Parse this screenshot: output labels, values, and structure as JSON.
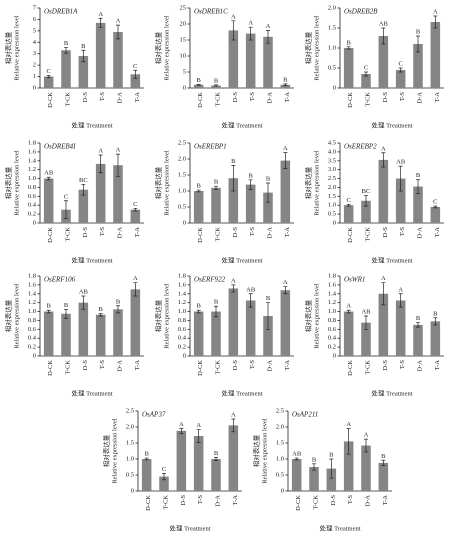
{
  "chart_data": [
    {
      "type": "bar",
      "title": "OsDREB1A",
      "ylabel": [
        "相对表达量",
        "Relative expression level"
      ],
      "xlabel": "处理 Treatment",
      "categories": [
        "D-CK",
        "T-CK",
        "D-S",
        "T-S",
        "D-A",
        "T-A"
      ],
      "values": [
        1.0,
        3.3,
        2.8,
        5.7,
        4.9,
        1.2
      ],
      "errors": [
        0.1,
        0.25,
        0.5,
        0.4,
        0.6,
        0.35
      ],
      "letters": [
        "C",
        "B",
        "B",
        "A",
        "A",
        "C"
      ],
      "color": "#858585",
      "ylim": [
        0,
        7
      ],
      "yticks": [
        0,
        1,
        2,
        3,
        4,
        5,
        6,
        7
      ]
    },
    {
      "type": "bar",
      "title": "OsDREB1C",
      "ylabel": [
        "相对表达量",
        "Relative expression level"
      ],
      "xlabel": "处理 Treatment",
      "categories": [
        "D-CK",
        "T-CK",
        "D-S",
        "T-S",
        "D-A",
        "T-A"
      ],
      "values": [
        1.0,
        0.8,
        18,
        17,
        16,
        1.0
      ],
      "errors": [
        0.1,
        0.2,
        3,
        2,
        2,
        0.3
      ],
      "letters": [
        "B",
        "B",
        "A",
        "A",
        "A",
        "B"
      ],
      "color": "#858585",
      "ylim": [
        0,
        25
      ],
      "yticks": [
        0,
        5,
        10,
        15,
        20,
        25
      ]
    },
    {
      "type": "bar",
      "title": "OsDREB2B",
      "ylabel": [
        "相对表达量",
        "Relative expression level"
      ],
      "xlabel": "处理 Treatment",
      "categories": [
        "D-CK",
        "T-CK",
        "D-S",
        "T-S",
        "D-A",
        "T-A"
      ],
      "values": [
        1.0,
        0.35,
        1.3,
        0.45,
        1.1,
        1.65
      ],
      "errors": [
        0.03,
        0.05,
        0.2,
        0.05,
        0.2,
        0.15
      ],
      "letters": [
        "B",
        "C",
        "AB",
        "C",
        "B",
        "A"
      ],
      "color": "#858585",
      "ylim": [
        0,
        2
      ],
      "yticks": [
        0,
        0.5,
        {
          "value": 1,
          "label": "1.0"
        },
        1.5,
        {
          "value": 2,
          "label": "2.0"
        }
      ]
    },
    {
      "type": "bar",
      "title": "OsDREB4I",
      "ylabel": [
        "相对表达量",
        "Relative expression level"
      ],
      "xlabel": "处理 Treatment",
      "categories": [
        "D-CK",
        "T-CK",
        "D-S",
        "T-S",
        "D-A",
        "T-A"
      ],
      "values": [
        1.0,
        0.3,
        0.75,
        1.33,
        1.3,
        0.3
      ],
      "errors": [
        0.03,
        0.2,
        0.12,
        0.2,
        0.25,
        0.03
      ],
      "letters": [
        "AB",
        "C",
        "BC",
        "A",
        "A",
        "C"
      ],
      "color": "#858585",
      "ylim": [
        0,
        1.8
      ],
      "yticks": [
        0,
        0.2,
        0.4,
        0.6,
        0.8,
        {
          "value": 1,
          "label": "1.0"
        },
        1.2,
        1.4,
        1.6,
        1.8
      ]
    },
    {
      "type": "bar",
      "title": "OsEREBP1",
      "ylabel": [
        "相对表达量",
        "Relative expression level"
      ],
      "xlabel": "处理 Treatment",
      "categories": [
        "D-CK",
        "T-CK",
        "D-S",
        "T-S",
        "D-A",
        "T-A"
      ],
      "values": [
        1.0,
        1.1,
        1.4,
        1.2,
        0.95,
        1.95
      ],
      "errors": [
        0.03,
        0.05,
        0.4,
        0.15,
        0.3,
        0.25
      ],
      "letters": [
        "B",
        "B",
        "B",
        "B",
        "B",
        "A"
      ],
      "color": "#858585",
      "ylim": [
        0,
        2.5
      ],
      "yticks": [
        0,
        0.5,
        {
          "value": 1,
          "label": "1.0"
        },
        1.5,
        {
          "value": 2,
          "label": "2.0"
        },
        2.5
      ]
    },
    {
      "type": "bar",
      "title": "OsEREBP2",
      "ylabel": [
        "相对表达量",
        "Relative expression level"
      ],
      "xlabel": "处理 Treatment",
      "categories": [
        "D-CK",
        "T-CK",
        "D-S",
        "T-S",
        "D-A",
        "T-A"
      ],
      "values": [
        1.0,
        1.25,
        3.55,
        2.5,
        2.05,
        0.9
      ],
      "errors": [
        0.05,
        0.3,
        0.4,
        0.7,
        0.4,
        0.05
      ],
      "letters": [
        "C",
        "BC",
        "A",
        "AB",
        "B",
        "C"
      ],
      "color": "#858585",
      "ylim": [
        0,
        4.5
      ],
      "yticks": [
        0,
        0.5,
        {
          "value": 1,
          "label": "1.0"
        },
        1.5,
        {
          "value": 2,
          "label": "2.0"
        },
        2.5,
        {
          "value": 3,
          "label": "3.0"
        },
        3.5,
        {
          "value": 4,
          "label": "4.0"
        },
        4.5
      ]
    },
    {
      "type": "bar",
      "title": "OsERF106",
      "ylabel": [
        "相对表达量",
        "Relative expression level"
      ],
      "xlabel": "处理 Treatment",
      "categories": [
        "D-CK",
        "T-CK",
        "D-S",
        "T-S",
        "D-A",
        "T-A"
      ],
      "values": [
        1.0,
        0.95,
        1.2,
        0.93,
        1.05,
        1.5
      ],
      "errors": [
        0.03,
        0.1,
        0.15,
        0.03,
        0.08,
        0.15
      ],
      "letters": [
        "B",
        "B",
        "AB",
        "B",
        "B",
        "A"
      ],
      "color": "#858585",
      "ylim": [
        0,
        1.8
      ],
      "yticks": [
        0,
        0.2,
        0.4,
        0.6,
        0.8,
        {
          "value": 1,
          "label": "1.0"
        },
        1.2,
        1.4,
        1.6,
        1.8
      ]
    },
    {
      "type": "bar",
      "title": "OsERF922",
      "ylabel": [
        "相对表达量",
        "Relative expression level"
      ],
      "xlabel": "处理 Treatment",
      "categories": [
        "D-CK",
        "T-CK",
        "D-S",
        "T-S",
        "D-A",
        "T-A"
      ],
      "values": [
        1.0,
        1.0,
        1.52,
        1.25,
        0.9,
        1.48
      ],
      "errors": [
        0.03,
        0.12,
        0.08,
        0.15,
        0.3,
        0.08
      ],
      "letters": [
        "B",
        "B",
        "A",
        "AB",
        "B",
        "A"
      ],
      "color": "#858585",
      "ylim": [
        0,
        1.8
      ],
      "yticks": [
        0,
        0.2,
        0.4,
        0.6,
        0.8,
        {
          "value": 1,
          "label": "1.0"
        },
        1.2,
        1.4,
        1.6,
        1.8
      ]
    },
    {
      "type": "bar",
      "title": "OsWR1",
      "ylabel": [
        "相对表达量",
        "Relative expression level"
      ],
      "xlabel": "处理 Treatment",
      "categories": [
        "D-CK",
        "T-CK",
        "D-S",
        "T-S",
        "D-A",
        "T-A"
      ],
      "values": [
        1.0,
        0.75,
        1.4,
        1.25,
        0.7,
        0.78
      ],
      "errors": [
        0.03,
        0.15,
        0.25,
        0.15,
        0.05,
        0.08
      ],
      "letters": [
        "A",
        "AB",
        "A",
        "A",
        "B",
        "B"
      ],
      "color": "#858585",
      "ylim": [
        0,
        1.8
      ],
      "yticks": [
        0,
        0.2,
        0.4,
        0.6,
        0.8,
        {
          "value": 1,
          "label": "1.0"
        },
        1.2,
        1.4,
        1.6,
        1.8
      ]
    },
    {
      "type": "bar",
      "title": "OsAP37",
      "ylabel": [
        "相对表达量",
        "Relative expression level"
      ],
      "xlabel": "处理 Treatment",
      "categories": [
        "D-CK",
        "T-CK",
        "D-S",
        "T-S",
        "D-A",
        "T-A"
      ],
      "values": [
        1.0,
        0.45,
        1.88,
        1.72,
        1.0,
        2.05
      ],
      "errors": [
        0.03,
        0.1,
        0.08,
        0.2,
        0.05,
        0.2
      ],
      "letters": [
        "B",
        "C",
        "A",
        "A",
        "B",
        "A"
      ],
      "color": "#858585",
      "ylim": [
        0,
        2.5
      ],
      "yticks": [
        0,
        0.5,
        {
          "value": 1,
          "label": "1.0"
        },
        1.5,
        {
          "value": 2,
          "label": "2.0"
        },
        2.5
      ]
    },
    {
      "type": "bar",
      "title": "OsAP211",
      "ylabel": [
        "相对表达量",
        "Relative expression level"
      ],
      "xlabel": "处理 Treatment",
      "categories": [
        "D-CK",
        "T-CK",
        "D-S",
        "T-S",
        "D-A",
        "T-A"
      ],
      "values": [
        1.0,
        0.75,
        0.7,
        1.55,
        1.42,
        0.88
      ],
      "errors": [
        0.03,
        0.1,
        0.3,
        0.4,
        0.2,
        0.08
      ],
      "letters": [
        "AB",
        "B",
        "B",
        "A",
        "A",
        "B"
      ],
      "color": "#858585",
      "ylim": [
        0,
        2.5
      ],
      "yticks": [
        0,
        0.5,
        {
          "value": 1,
          "label": "1.0"
        },
        1.5,
        {
          "value": 2,
          "label": "2.0"
        },
        2.5
      ]
    }
  ]
}
